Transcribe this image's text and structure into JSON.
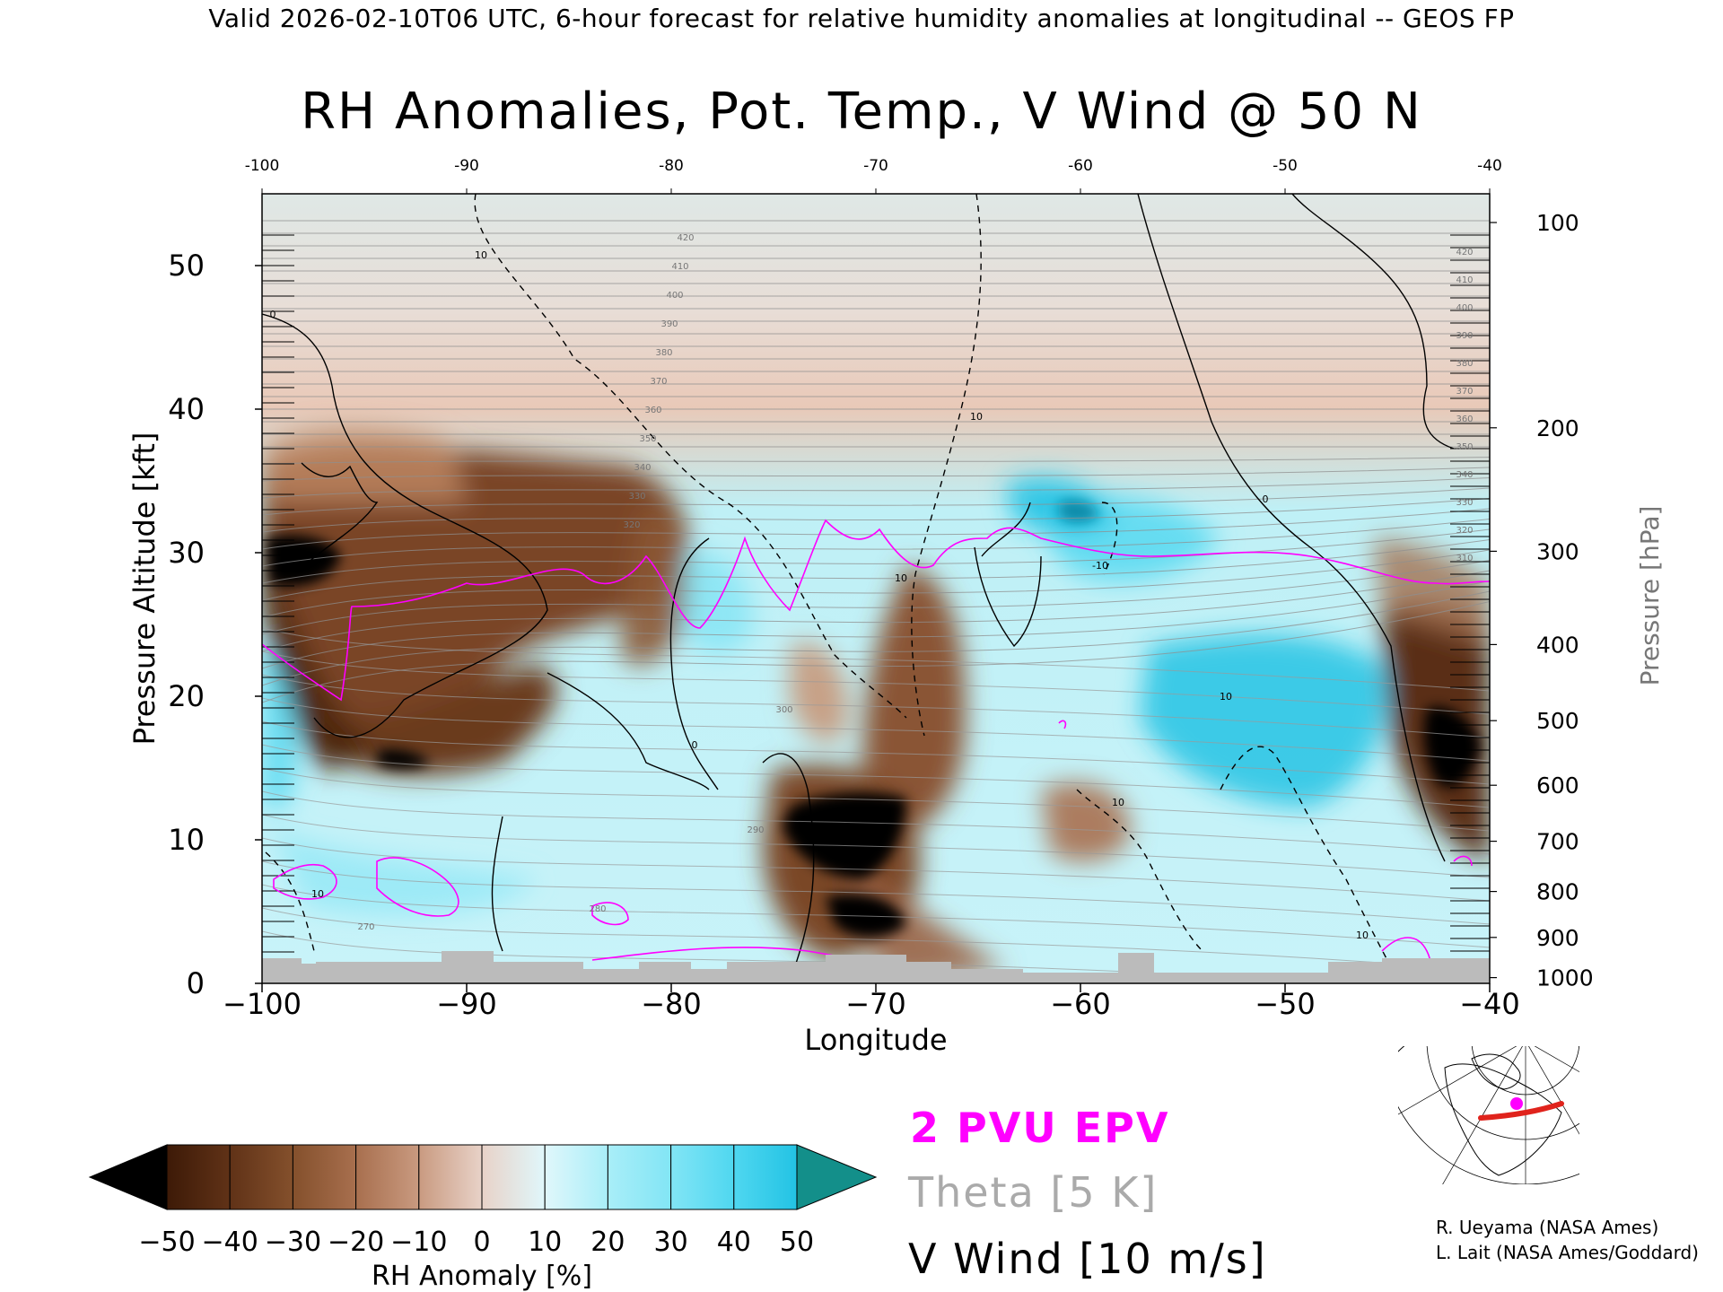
{
  "header": "Valid 2026-02-10T06 UTC, 6-hour forecast for relative humidity anomalies at longitudinal -- GEOS FP",
  "chart_data": {
    "type": "heatmap",
    "title": "RH Anomalies, Pot. Temp., V Wind @ 50 N",
    "xlabel": "Longitude",
    "ylabel": "Pressure Altitude [kft]",
    "y2label": "Pressure [hPa]",
    "xlim": [
      -100,
      -40
    ],
    "ylim": [
      0,
      55
    ],
    "x_ticks": [
      -100,
      -90,
      -80,
      -70,
      -60,
      -50,
      -40
    ],
    "x_tick_labels": [
      "−100",
      "−90",
      "−80",
      "−70",
      "−60",
      "−50",
      "−40"
    ],
    "x_top_tick_labels": [
      "-100",
      "-90",
      "-80",
      "-70",
      "-60",
      "-50",
      "-40"
    ],
    "y_ticks": [
      0,
      10,
      20,
      30,
      40,
      50
    ],
    "y_tick_labels": [
      "0",
      "10",
      "20",
      "30",
      "40",
      "50"
    ],
    "pressure_ticks": [
      {
        "label": "100",
        "alt": 53.0
      },
      {
        "label": "200",
        "alt": 38.7
      },
      {
        "label": "300",
        "alt": 30.1
      },
      {
        "label": "400",
        "alt": 23.6
      },
      {
        "label": "500",
        "alt": 18.3
      },
      {
        "label": "600",
        "alt": 13.8
      },
      {
        "label": "700",
        "alt": 9.9
      },
      {
        "label": "800",
        "alt": 6.4
      },
      {
        "label": "900",
        "alt": 3.2
      },
      {
        "label": "1000",
        "alt": 0.4
      }
    ],
    "colorbar": {
      "label": "RH Anomaly [%]",
      "tick_labels": [
        "−50",
        "−40",
        "−30",
        "−20",
        "−10",
        "0",
        "10",
        "20",
        "30",
        "40",
        "50"
      ],
      "colors": [
        "#000000",
        "#3d1a07",
        "#603217",
        "#84502c",
        "#a86f4e",
        "#c99a80",
        "#e8d2c8",
        "#e0f7fb",
        "#a9eef8",
        "#82e5f5",
        "#4fd7f0",
        "#23c3e4",
        "#0ea7ca",
        "#0a8aa8",
        "#138f8a"
      ]
    },
    "legend": [
      {
        "text": "2 PVU EPV",
        "color": "#ff00ff"
      },
      {
        "text": "Theta [5 K]",
        "color": "#aaaaaa"
      },
      {
        "text": "V Wind [10 m/s]",
        "color": "#000000"
      }
    ],
    "theta_labels_left": [
      "420",
      "410",
      "400",
      "390",
      "380",
      "370",
      "360",
      "350",
      "340",
      "330",
      "320"
    ],
    "theta_labels_right": [
      "420",
      "410",
      "400",
      "390",
      "380",
      "370",
      "360",
      "350",
      "340",
      "330",
      "320",
      "310"
    ],
    "theta_labels_low": [
      "300",
      "290",
      "280",
      "270"
    ],
    "wind_labels": [
      "0",
      "-10",
      "10"
    ],
    "credits": [
      "R. Ueyama (NASA Ames)",
      "L. Lait (NASA Ames/Goddard)"
    ]
  }
}
